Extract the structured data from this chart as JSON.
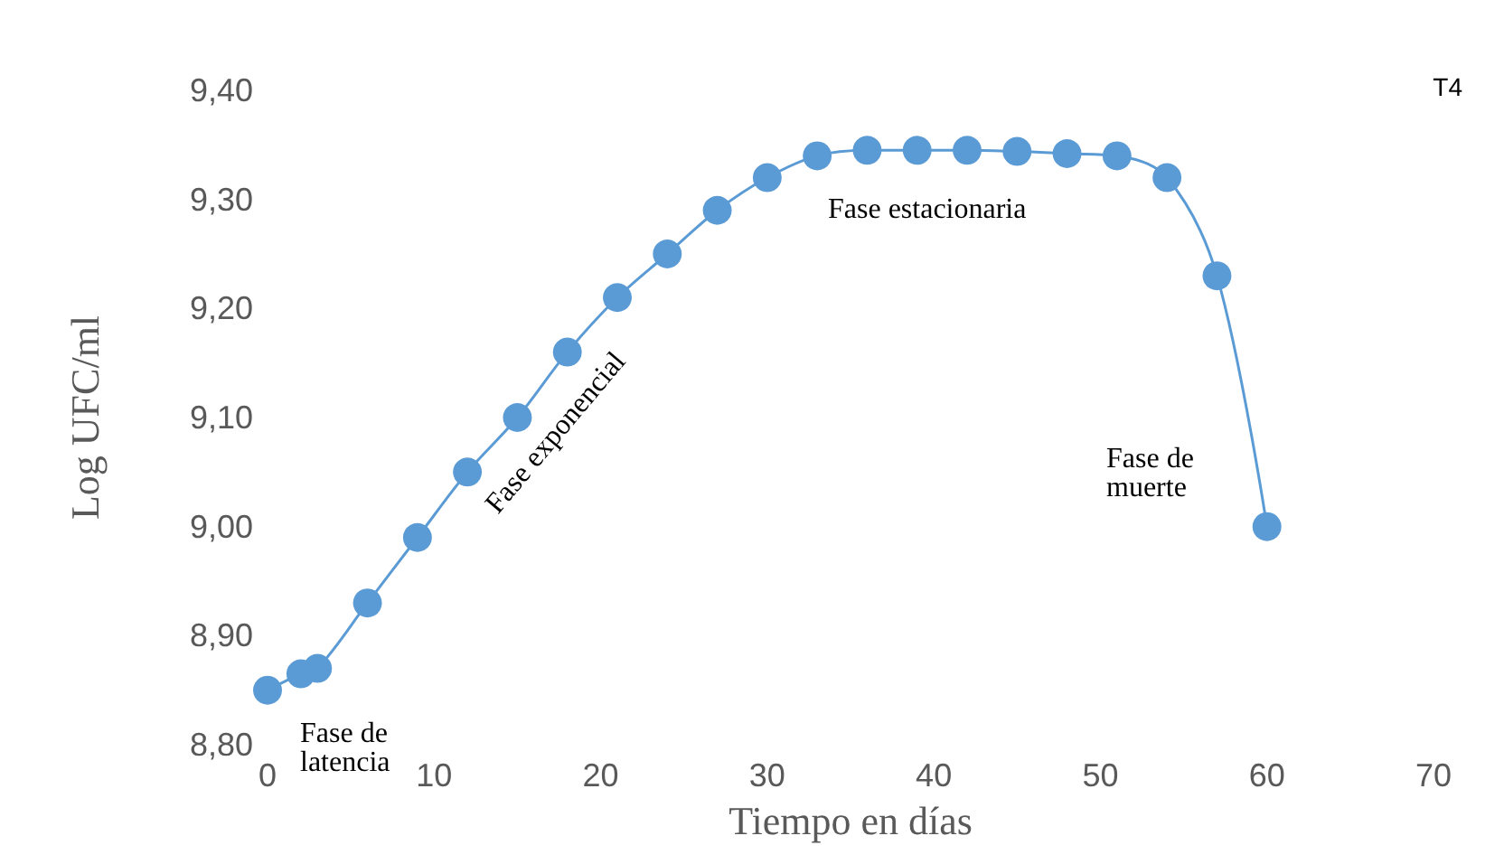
{
  "chart_data": {
    "type": "line",
    "title": "T4",
    "xlabel": "Tiempo en días",
    "ylabel": "Log UFC/ml",
    "x": [
      0,
      2,
      3,
      6,
      9,
      12,
      15,
      18,
      21,
      24,
      27,
      30,
      33,
      36,
      39,
      42,
      45,
      48,
      51,
      54,
      57,
      60
    ],
    "series": [
      {
        "color": "#5b9bd5",
        "values": [
          8.85,
          8.865,
          8.87,
          8.93,
          8.99,
          9.05,
          9.1,
          9.16,
          9.21,
          9.25,
          9.29,
          9.32,
          9.34,
          9.345,
          9.345,
          9.345,
          9.344,
          9.342,
          9.34,
          9.32,
          9.23,
          9.0
        ]
      }
    ],
    "xlim": [
      0,
      70
    ],
    "xticks": [
      0,
      10,
      20,
      30,
      40,
      50,
      60,
      70
    ],
    "ylim": [
      8.8,
      9.4
    ],
    "yticks": [
      {
        "value": 8.8,
        "label": "8,80"
      },
      {
        "value": 8.9,
        "label": "8,90"
      },
      {
        "value": 9.0,
        "label": "9,00"
      },
      {
        "value": 9.1,
        "label": "9,10"
      },
      {
        "value": 9.2,
        "label": "9,20"
      },
      {
        "value": 9.3,
        "label": "9,30"
      },
      {
        "value": 9.4,
        "label": "9,40"
      }
    ],
    "grid": false,
    "marker": "circle",
    "line_style": "solid",
    "annotations": [
      "Fase de latencia",
      "Fase exponencial",
      "Fase estacionaria",
      "Fase de muerte"
    ]
  }
}
